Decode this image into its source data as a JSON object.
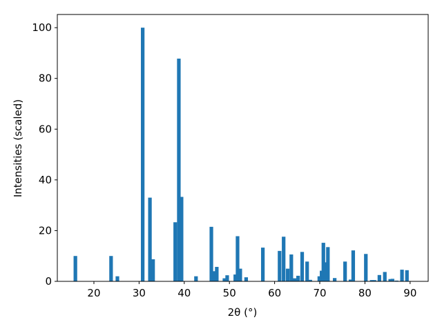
{
  "chart_data": {
    "type": "bar",
    "xlabel": "2θ (°)",
    "ylabel": "Intensities (scaled)",
    "color": "#1f77b4",
    "x": [
      15.9,
      23.8,
      25.2,
      30.8,
      32.4,
      33.1,
      38.0,
      38.8,
      39.4,
      42.6,
      46.0,
      46.6,
      47.2,
      48.9,
      49.5,
      51.3,
      51.8,
      52.4,
      53.7,
      57.4,
      61.1,
      62.0,
      62.9,
      63.7,
      64.4,
      65.2,
      66.1,
      67.2,
      67.9,
      69.9,
      70.4,
      70.8,
      71.3,
      71.8,
      73.3,
      75.6,
      76.8,
      77.4,
      80.2,
      81.5,
      82.1,
      83.2,
      84.4,
      85.6,
      86.1,
      87.0,
      88.2,
      89.3
    ],
    "values": [
      10,
      10,
      2,
      100,
      33,
      8.7,
      23.3,
      87.8,
      33.3,
      2,
      21.5,
      4,
      5.7,
      1.2,
      2.4,
      2.7,
      17.8,
      5,
      1.6,
      13.3,
      12,
      17.6,
      5,
      10.6,
      1.2,
      2.2,
      11.6,
      7.8,
      0.6,
      2,
      4.2,
      15.2,
      7.5,
      13.5,
      1.3,
      7.8,
      0.7,
      12.2,
      10.8,
      0.5,
      0.5,
      2.5,
      3.7,
      0.9,
      1,
      0.3,
      4.6,
      4.4
    ],
    "xlim": [
      11.9,
      94.0
    ],
    "xticks": [
      20,
      30,
      40,
      50,
      60,
      70,
      80,
      90
    ],
    "ylim": [
      0,
      105.2
    ],
    "yticks": [
      0,
      20,
      40,
      60,
      80,
      100
    ]
  }
}
